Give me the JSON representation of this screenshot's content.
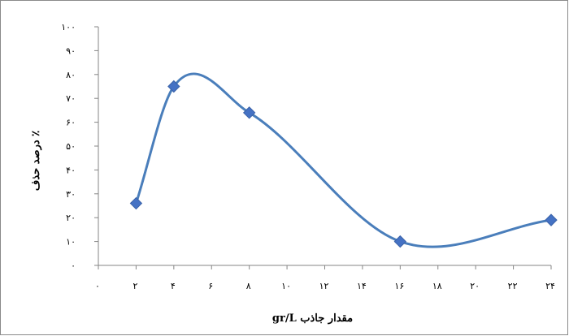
{
  "chart_data": {
    "type": "line",
    "smooth": true,
    "title": "",
    "xlabel": "مقدار جاذب gr/L",
    "ylabel": "٪ درصد حذف",
    "x_ticks": [
      0,
      2,
      4,
      6,
      8,
      10,
      12,
      14,
      16,
      18,
      20,
      22,
      24
    ],
    "x_tick_labels": [
      "۰",
      "۲",
      "۴",
      "۶",
      "۸",
      "۱۰",
      "۱۲",
      "۱۴",
      "۱۶",
      "۱۸",
      "۲۰",
      "۲۲",
      "۲۴"
    ],
    "y_ticks": [
      0,
      10,
      20,
      30,
      40,
      50,
      60,
      70,
      80,
      90,
      100
    ],
    "y_tick_labels": [
      "۰",
      "۱۰",
      "۲۰",
      "۳۰",
      "۴۰",
      "۵۰",
      "۶۰",
      "۷۰",
      "۸۰",
      "۹۰",
      "۱۰۰"
    ],
    "xlim": [
      0,
      24
    ],
    "ylim": [
      0,
      100
    ],
    "grid": false,
    "legend": "none",
    "series": [
      {
        "x": [
          2,
          4,
          8,
          16,
          24
        ],
        "y": [
          26,
          75,
          64,
          10,
          19
        ],
        "color": "#4a7ebb",
        "marker": "diamond",
        "marker_color": "#4572c4"
      }
    ]
  }
}
